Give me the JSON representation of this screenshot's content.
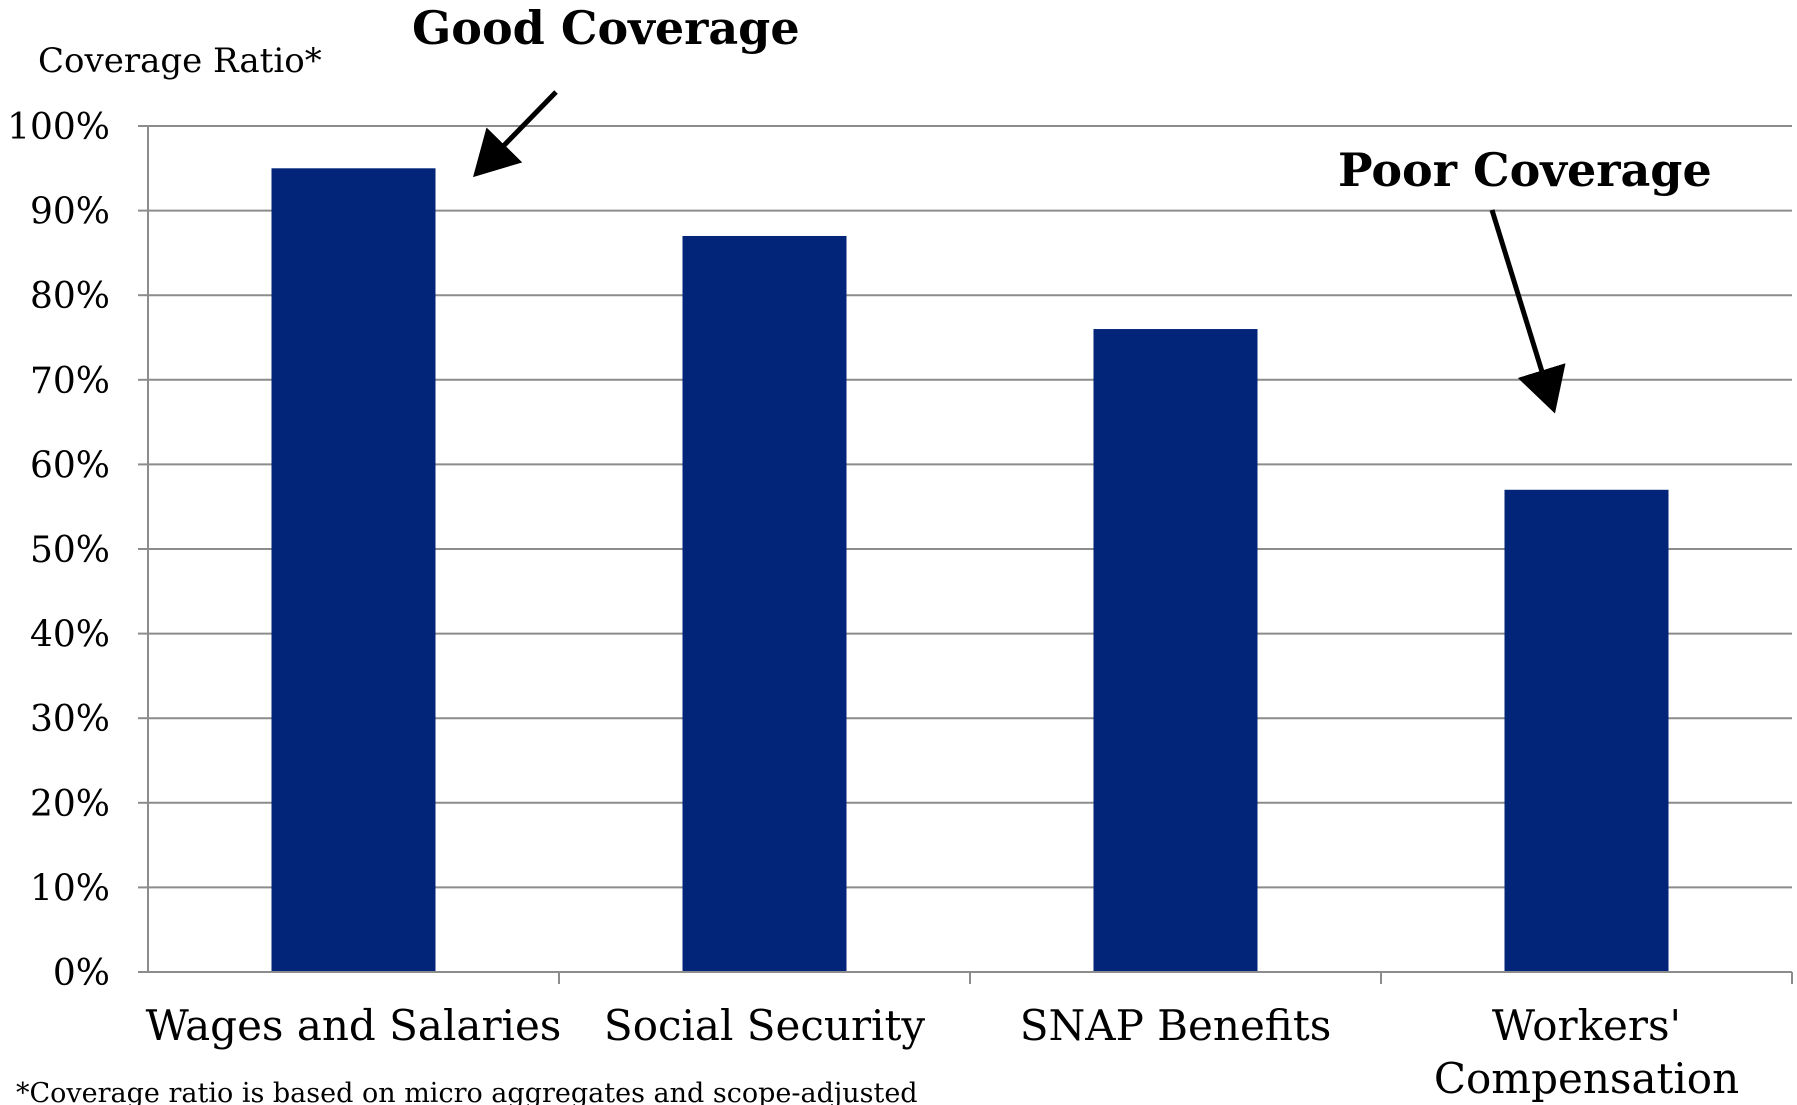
{
  "chart_data": {
    "type": "bar",
    "ylabel": "Coverage Ratio*",
    "categories": [
      "Wages and Salaries",
      "Social Security",
      "SNAP Benefits",
      "Workers' Compensation"
    ],
    "category_lines": [
      [
        "Wages and Salaries"
      ],
      [
        "Social Security"
      ],
      [
        "SNAP Benefits"
      ],
      [
        "Workers'",
        "Compensation"
      ]
    ],
    "values": [
      0.95,
      0.87,
      0.76,
      0.57
    ],
    "ylim": [
      0,
      1
    ],
    "yticks": [
      "0%",
      "10%",
      "20%",
      "30%",
      "40%",
      "50%",
      "60%",
      "70%",
      "80%",
      "90%",
      "100%"
    ],
    "grid": true,
    "bar_color": "#02257a",
    "annotations": [
      {
        "text": "Good Coverage",
        "points_to": "Wages and Salaries"
      },
      {
        "text": "Poor Coverage",
        "points_to": "Workers' Compensation"
      }
    ],
    "footnote": "*Coverage ratio is based on micro aggregates and scope-adjusted"
  }
}
